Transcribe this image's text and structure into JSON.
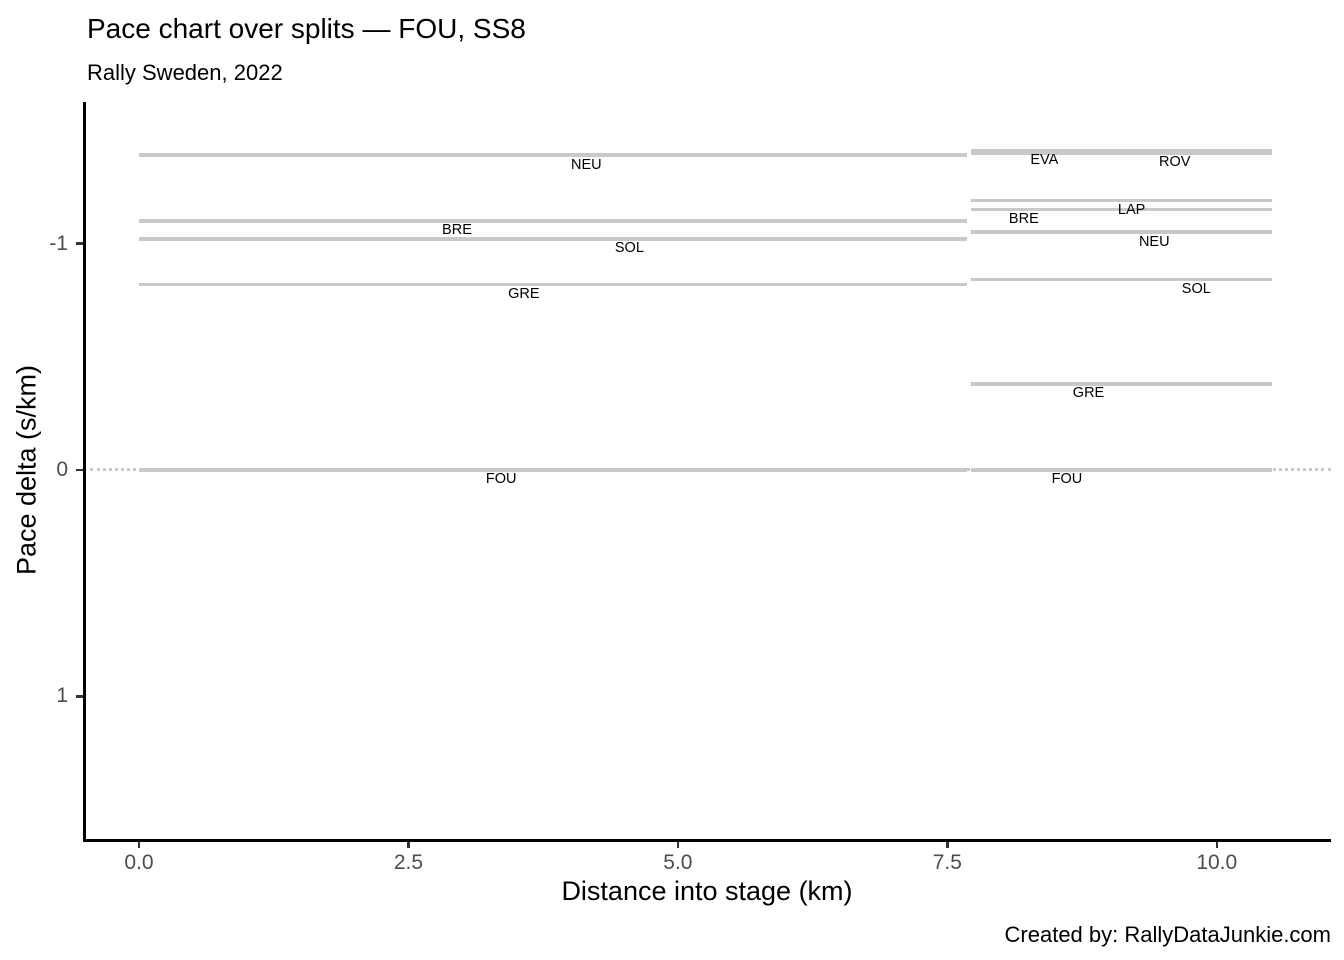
{
  "header": {
    "title": "Pace chart over splits — FOU, SS8",
    "subtitle": "Rally Sweden, 2022"
  },
  "caption": "Created by: RallyDataJunkie.com",
  "chart_data": {
    "type": "line",
    "subtype": "horizontal-pace-segments",
    "title": "Pace chart over splits — FOU, SS8",
    "subtitle": "Rally Sweden, 2022",
    "xlabel": "Distance into stage (km)",
    "ylabel": "Pace delta (s/km)",
    "xlim": [
      -0.52,
      11.06
    ],
    "ylim": [
      -1.625,
      1.63
    ],
    "y_axis_reversed": true,
    "grid": false,
    "legend": "none",
    "x_ticks": [
      {
        "value": 0,
        "label": "0.0"
      },
      {
        "value": 2.5,
        "label": "2.5"
      },
      {
        "value": 5,
        "label": "5.0"
      },
      {
        "value": 7.5,
        "label": "7.5"
      },
      {
        "value": 10,
        "label": "10.0"
      }
    ],
    "y_ticks": [
      {
        "value": -1,
        "label": "-1"
      },
      {
        "value": 0,
        "label": "0"
      },
      {
        "value": 1,
        "label": "1"
      }
    ],
    "zero_reference_line": {
      "value": 0,
      "style": "dotted"
    },
    "splits": [
      {
        "name": "split-1",
        "x_start": 0.0,
        "x_end": 7.68
      },
      {
        "name": "split-2",
        "x_start": 7.72,
        "x_end": 10.51
      }
    ],
    "segments": [
      {
        "driver": "NEU",
        "split": 1,
        "x_start": 0.0,
        "x_end": 7.68,
        "pace_delta": -1.39
      },
      {
        "driver": "BRE",
        "split": 1,
        "x_start": 0.0,
        "x_end": 7.68,
        "pace_delta": -1.1
      },
      {
        "driver": "SOL",
        "split": 1,
        "x_start": 0.0,
        "x_end": 7.68,
        "pace_delta": -1.02
      },
      {
        "driver": "GRE",
        "split": 1,
        "x_start": 0.0,
        "x_end": 7.68,
        "pace_delta": -0.82
      },
      {
        "driver": "FOU",
        "split": 1,
        "x_start": 0.0,
        "x_end": 7.68,
        "pace_delta": 0.0
      },
      {
        "driver": "EVA",
        "split": 2,
        "x_start": 7.72,
        "x_end": 10.51,
        "pace_delta": -1.41
      },
      {
        "driver": "ROV",
        "split": 2,
        "x_start": 7.72,
        "x_end": 10.51,
        "pace_delta": -1.4
      },
      {
        "driver": "LAP",
        "split": 2,
        "x_start": 7.72,
        "x_end": 10.51,
        "pace_delta": -1.19
      },
      {
        "driver": "BRE",
        "split": 2,
        "x_start": 7.72,
        "x_end": 10.51,
        "pace_delta": -1.15
      },
      {
        "driver": "NEU",
        "split": 2,
        "x_start": 7.72,
        "x_end": 10.51,
        "pace_delta": -1.05
      },
      {
        "driver": "SOL",
        "split": 2,
        "x_start": 7.72,
        "x_end": 10.51,
        "pace_delta": -0.84
      },
      {
        "driver": "GRE",
        "split": 2,
        "x_start": 7.72,
        "x_end": 10.51,
        "pace_delta": -0.38
      },
      {
        "driver": "FOU",
        "split": 2,
        "x_start": 7.72,
        "x_end": 10.51,
        "pace_delta": 0.0
      }
    ],
    "labels": [
      {
        "driver": "NEU",
        "split": 1,
        "x": 4.15,
        "pace_delta": -1.39
      },
      {
        "driver": "BRE",
        "split": 1,
        "x": 2.95,
        "pace_delta": -1.1
      },
      {
        "driver": "SOL",
        "split": 1,
        "x": 4.55,
        "pace_delta": -1.02
      },
      {
        "driver": "GRE",
        "split": 1,
        "x": 3.57,
        "pace_delta": -0.82
      },
      {
        "driver": "FOU",
        "split": 1,
        "x": 3.36,
        "pace_delta": 0.0
      },
      {
        "driver": "EVA",
        "split": 2,
        "x": 8.4,
        "pace_delta": -1.41
      },
      {
        "driver": "ROV",
        "split": 2,
        "x": 9.61,
        "pace_delta": -1.4
      },
      {
        "driver": "LAP",
        "split": 2,
        "x": 9.21,
        "pace_delta": -1.19
      },
      {
        "driver": "BRE",
        "split": 2,
        "x": 8.21,
        "pace_delta": -1.15
      },
      {
        "driver": "NEU",
        "split": 2,
        "x": 9.42,
        "pace_delta": -1.05
      },
      {
        "driver": "SOL",
        "split": 2,
        "x": 9.81,
        "pace_delta": -0.84
      },
      {
        "driver": "GRE",
        "split": 2,
        "x": 8.81,
        "pace_delta": -0.38
      },
      {
        "driver": "FOU",
        "split": 2,
        "x": 8.61,
        "pace_delta": 0.0
      }
    ],
    "colors": {
      "segment": "#c9c9c9",
      "zero_line": "#c9c9c9",
      "axis_line": "#000000",
      "tick_text": "#4d4d4d",
      "label_text": "#000000",
      "background": "#ffffff"
    }
  }
}
